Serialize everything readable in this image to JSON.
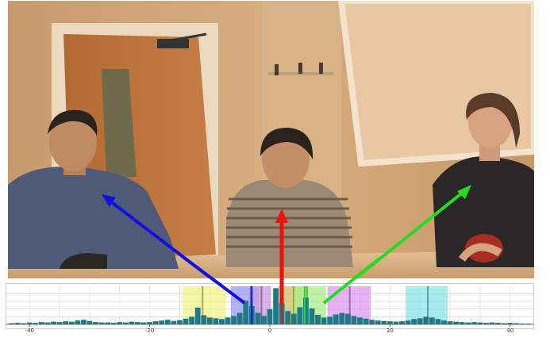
{
  "scene": {
    "people": [
      {
        "id": "left-man",
        "arrow_color": "#1010e0"
      },
      {
        "id": "center-woman",
        "arrow_color": "#ee1111"
      },
      {
        "id": "right-woman",
        "arrow_color": "#22dd22"
      }
    ]
  },
  "chart_data": {
    "type": "bar",
    "xlim": [
      -44,
      44
    ],
    "x_ticks": [
      -40,
      -20,
      0,
      20,
      40
    ],
    "grid": true,
    "regions": [
      {
        "x0": -14.5,
        "x1": -7.3,
        "color": "#f2f28a",
        "mark": -11.2
      },
      {
        "x0": -6.5,
        "x1": -1.8,
        "color": "#9a9af0",
        "mark": -3.2
      },
      {
        "x0": -2.5,
        "x1": 0.2,
        "color": "#cc99e0",
        "mark": -1.4
      },
      {
        "x0": 1.4,
        "x1": 6.4,
        "color": "#cfc060",
        "mark": 4.0
      },
      {
        "x0": 4.0,
        "x1": 9.4,
        "color": "#a8ee88",
        "mark": 6.2
      },
      {
        "x0": 9.6,
        "x1": 16.8,
        "color": "#e099ee",
        "mark": 13.3
      },
      {
        "x0": 22.6,
        "x1": 29.6,
        "color": "#88e6e6",
        "mark": 26.3
      }
    ],
    "peak_marks": [
      {
        "x": -3.0,
        "color": "#1010e0"
      },
      {
        "x": 2.0,
        "color": "#ee1111"
      },
      {
        "x": 5.8,
        "color": "#22dd22"
      }
    ],
    "values": [
      {
        "x": -43,
        "y": 0.03
      },
      {
        "x": -42,
        "y": 0.04
      },
      {
        "x": -41,
        "y": 0.03
      },
      {
        "x": -40,
        "y": 0.05
      },
      {
        "x": -39,
        "y": 0.04
      },
      {
        "x": -38,
        "y": 0.06
      },
      {
        "x": -37,
        "y": 0.05
      },
      {
        "x": -36,
        "y": 0.07
      },
      {
        "x": -35,
        "y": 0.06
      },
      {
        "x": -34,
        "y": 0.08
      },
      {
        "x": -33,
        "y": 0.07
      },
      {
        "x": -32,
        "y": 0.1
      },
      {
        "x": -31,
        "y": 0.12
      },
      {
        "x": -30,
        "y": 0.09
      },
      {
        "x": -29,
        "y": 0.06
      },
      {
        "x": -28,
        "y": 0.05
      },
      {
        "x": -27,
        "y": 0.05
      },
      {
        "x": -26,
        "y": 0.04
      },
      {
        "x": -25,
        "y": 0.06
      },
      {
        "x": -24,
        "y": 0.05
      },
      {
        "x": -23,
        "y": 0.07
      },
      {
        "x": -22,
        "y": 0.06
      },
      {
        "x": -21,
        "y": 0.05
      },
      {
        "x": -20,
        "y": 0.06
      },
      {
        "x": -19,
        "y": 0.08
      },
      {
        "x": -18,
        "y": 0.1
      },
      {
        "x": -17,
        "y": 0.12
      },
      {
        "x": -16,
        "y": 0.09
      },
      {
        "x": -15,
        "y": 0.11
      },
      {
        "x": -14,
        "y": 0.15
      },
      {
        "x": -13,
        "y": 0.2
      },
      {
        "x": -12,
        "y": 0.44
      },
      {
        "x": -11,
        "y": 0.24
      },
      {
        "x": -10,
        "y": 0.18
      },
      {
        "x": -9,
        "y": 0.16
      },
      {
        "x": -8,
        "y": 0.14
      },
      {
        "x": -7,
        "y": 0.18
      },
      {
        "x": -6,
        "y": 0.22
      },
      {
        "x": -5,
        "y": 0.3
      },
      {
        "x": -4,
        "y": 0.62
      },
      {
        "x": -3,
        "y": 0.48
      },
      {
        "x": -2,
        "y": 0.3
      },
      {
        "x": -1,
        "y": 0.22
      },
      {
        "x": 0,
        "y": 0.4
      },
      {
        "x": 1,
        "y": 0.95
      },
      {
        "x": 2,
        "y": 0.55
      },
      {
        "x": 3,
        "y": 0.35
      },
      {
        "x": 4,
        "y": 0.28
      },
      {
        "x": 5,
        "y": 0.45
      },
      {
        "x": 6,
        "y": 0.7
      },
      {
        "x": 7,
        "y": 0.42
      },
      {
        "x": 8,
        "y": 0.25
      },
      {
        "x": 9,
        "y": 0.18
      },
      {
        "x": 10,
        "y": 0.2
      },
      {
        "x": 11,
        "y": 0.26
      },
      {
        "x": 12,
        "y": 0.3
      },
      {
        "x": 13,
        "y": 0.28
      },
      {
        "x": 14,
        "y": 0.22
      },
      {
        "x": 15,
        "y": 0.18
      },
      {
        "x": 16,
        "y": 0.15
      },
      {
        "x": 17,
        "y": 0.12
      },
      {
        "x": 18,
        "y": 0.1
      },
      {
        "x": 19,
        "y": 0.09
      },
      {
        "x": 20,
        "y": 0.08
      },
      {
        "x": 21,
        "y": 0.07
      },
      {
        "x": 22,
        "y": 0.08
      },
      {
        "x": 23,
        "y": 0.1
      },
      {
        "x": 24,
        "y": 0.14
      },
      {
        "x": 25,
        "y": 0.16
      },
      {
        "x": 26,
        "y": 0.2
      },
      {
        "x": 27,
        "y": 0.18
      },
      {
        "x": 28,
        "y": 0.14
      },
      {
        "x": 29,
        "y": 0.1
      },
      {
        "x": 30,
        "y": 0.08
      },
      {
        "x": 31,
        "y": 0.07
      },
      {
        "x": 32,
        "y": 0.06
      },
      {
        "x": 33,
        "y": 0.05
      },
      {
        "x": 34,
        "y": 0.06
      },
      {
        "x": 35,
        "y": 0.05
      },
      {
        "x": 36,
        "y": 0.04
      },
      {
        "x": 37,
        "y": 0.05
      },
      {
        "x": 38,
        "y": 0.04
      },
      {
        "x": 39,
        "y": 0.03
      },
      {
        "x": 40,
        "y": 0.04
      },
      {
        "x": 41,
        "y": 0.03
      },
      {
        "x": 42,
        "y": 0.02
      },
      {
        "x": 43,
        "y": 0.02
      }
    ]
  }
}
